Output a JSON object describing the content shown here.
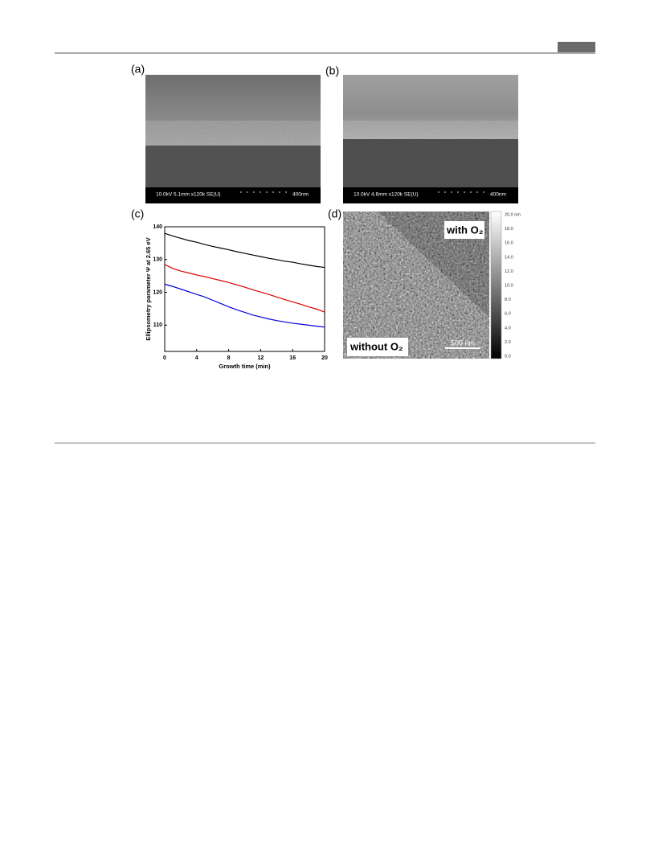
{
  "panels": {
    "a": {
      "label": "(a)",
      "info": "10.0kV 5.1mm x120k SE(U)",
      "scale": "400nm"
    },
    "b": {
      "label": "(b)",
      "info": "10.0kV 4.6mm x120k SE(U)",
      "scale": "400nm"
    },
    "c": {
      "label": "(c)"
    },
    "d": {
      "label": "(d)",
      "top_text": "with O₂",
      "bottom_text": "without O₂",
      "scale": "500 nm",
      "colorbar": [
        "20.0 nm",
        "18.0",
        "16.0",
        "14.0",
        "12.0",
        "10.0",
        "8.0",
        "6.0",
        "4.0",
        "2.0",
        "0.0"
      ]
    }
  },
  "chart_data": {
    "type": "line",
    "x_label": "Growth time (min)",
    "y_label": "Ellipsometry parameter Ψ at 2.65 eV",
    "x": [
      0,
      1,
      2,
      3,
      4,
      5,
      6,
      7,
      8,
      9,
      10,
      11,
      12,
      13,
      14,
      15,
      16,
      17,
      18,
      19,
      20
    ],
    "series": [
      {
        "color": "#000000",
        "values": [
          138,
          137.2,
          136.5,
          135.8,
          135.3,
          134.6,
          134,
          133.5,
          133,
          132.4,
          131.9,
          131.4,
          130.9,
          130.4,
          130,
          129.5,
          129.2,
          128.7,
          128.3,
          127.9,
          127.6
        ]
      },
      {
        "color": "#e00000",
        "values": [
          128.5,
          127.3,
          126.5,
          125.9,
          125.3,
          124.8,
          124.2,
          123.6,
          123,
          122.3,
          121.6,
          120.8,
          120.1,
          119.4,
          118.6,
          117.8,
          117.1,
          116.4,
          115.6,
          114.9,
          114
        ]
      },
      {
        "color": "#0000dd",
        "values": [
          122.5,
          121.8,
          121,
          120.2,
          119.4,
          118.6,
          117.6,
          116.6,
          115.6,
          114.7,
          113.9,
          113.1,
          112.5,
          111.9,
          111.4,
          111,
          110.6,
          110.3,
          110,
          109.7,
          109.4
        ]
      }
    ],
    "xlim": [
      0,
      20
    ],
    "xticks": [
      0,
      4,
      8,
      12,
      16,
      20
    ],
    "ylim": [
      102,
      140
    ],
    "yticks": [
      110,
      120,
      130,
      140
    ]
  }
}
